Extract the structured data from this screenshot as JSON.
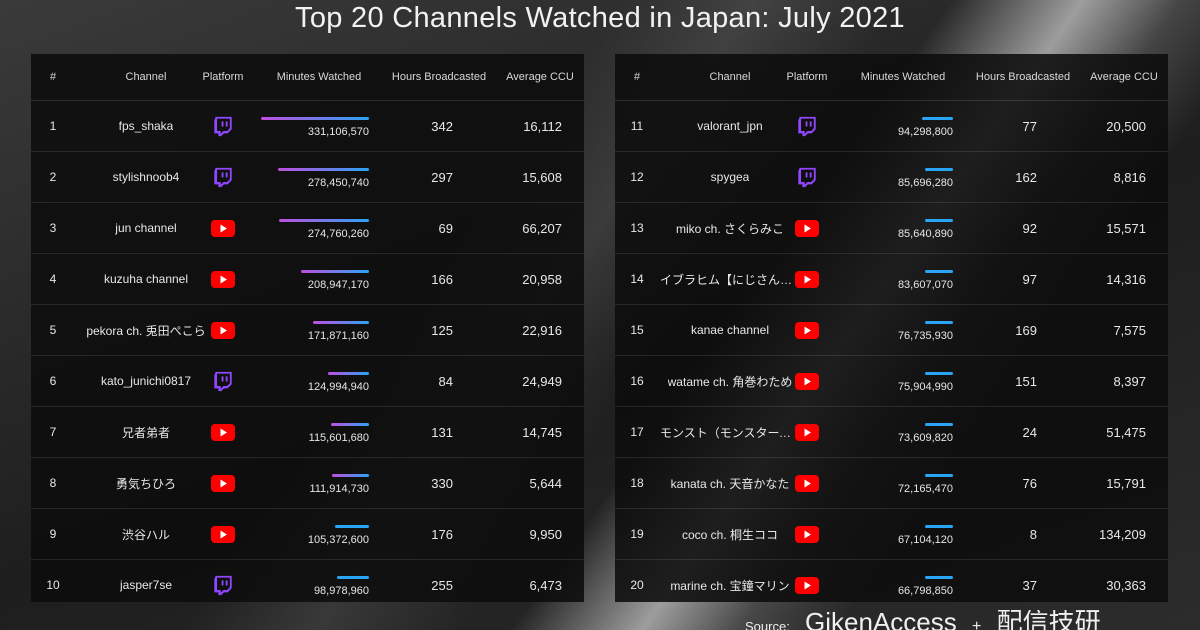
{
  "title": "Top 20 Channels Watched in Japan: July 2021",
  "headers": {
    "rank": "#",
    "channel": "Channel",
    "platform": "Platform",
    "minutes": "Minutes Watched",
    "hours": "Hours Broadcasted",
    "ccu": "Average CCU"
  },
  "colors": {
    "twitch": "#9146ff",
    "youtube": "#ff0000",
    "bar_start": "#c04ee0",
    "bar_end": "#2aa4f4"
  },
  "footer": {
    "source_label": "Source:",
    "brand1": "GikenAccess",
    "plus": "+",
    "brand2": "配信技研"
  },
  "chart_data": {
    "type": "table",
    "title": "Top 20 Channels Watched in Japan: July 2021",
    "columns": [
      "#",
      "Channel",
      "Platform",
      "Minutes Watched",
      "Hours Broadcasted",
      "Average CCU"
    ],
    "rows": [
      {
        "rank": "1",
        "channel": "fps_shaka",
        "platform": "twitch",
        "minutes": 331106570,
        "minutes_label": "331,106,570",
        "hours": "342",
        "ccu": "16,112"
      },
      {
        "rank": "2",
        "channel": "stylishnoob4",
        "platform": "twitch",
        "minutes": 278450740,
        "minutes_label": "278,450,740",
        "hours": "297",
        "ccu": "15,608"
      },
      {
        "rank": "3",
        "channel": "jun channel",
        "platform": "youtube",
        "minutes": 274760260,
        "minutes_label": "274,760,260",
        "hours": "69",
        "ccu": "66,207"
      },
      {
        "rank": "4",
        "channel": "kuzuha channel",
        "platform": "youtube",
        "minutes": 208947170,
        "minutes_label": "208,947,170",
        "hours": "166",
        "ccu": "20,958"
      },
      {
        "rank": "5",
        "channel": "pekora ch. 兎田ぺこら",
        "platform": "youtube",
        "minutes": 171871160,
        "minutes_label": "171,871,160",
        "hours": "125",
        "ccu": "22,916"
      },
      {
        "rank": "6",
        "channel": "kato_junichi0817",
        "platform": "twitch",
        "minutes": 124994940,
        "minutes_label": "124,994,940",
        "hours": "84",
        "ccu": "24,949"
      },
      {
        "rank": "7",
        "channel": "兄者弟者",
        "platform": "youtube",
        "minutes": 115601680,
        "minutes_label": "115,601,680",
        "hours": "131",
        "ccu": "14,745"
      },
      {
        "rank": "8",
        "channel": "勇気ちひろ",
        "platform": "youtube",
        "minutes": 111914730,
        "minutes_label": "111,914,730",
        "hours": "330",
        "ccu": "5,644"
      },
      {
        "rank": "9",
        "channel": "渋谷ハル",
        "platform": "youtube",
        "minutes": 105372600,
        "minutes_label": "105,372,600",
        "hours": "176",
        "ccu": "9,950"
      },
      {
        "rank": "10",
        "channel": "jasper7se",
        "platform": "twitch",
        "minutes": 98978960,
        "minutes_label": "98,978,960",
        "hours": "255",
        "ccu": "6,473"
      },
      {
        "rank": "11",
        "channel": "valorant_jpn",
        "platform": "twitch",
        "minutes": 94298800,
        "minutes_label": "94,298,800",
        "hours": "77",
        "ccu": "20,500"
      },
      {
        "rank": "12",
        "channel": "spygea",
        "platform": "twitch",
        "minutes": 85696280,
        "minutes_label": "85,696,280",
        "hours": "162",
        "ccu": "8,816"
      },
      {
        "rank": "13",
        "channel": "miko ch. さくらみこ",
        "platform": "youtube",
        "minutes": 85640890,
        "minutes_label": "85,640,890",
        "hours": "92",
        "ccu": "15,571"
      },
      {
        "rank": "14",
        "channel": "イブラヒム【にじさんじ】",
        "platform": "youtube",
        "minutes": 83607070,
        "minutes_label": "83,607,070",
        "hours": "97",
        "ccu": "14,316"
      },
      {
        "rank": "15",
        "channel": "kanae channel",
        "platform": "youtube",
        "minutes": 76735930,
        "minutes_label": "76,735,930",
        "hours": "169",
        "ccu": "7,575"
      },
      {
        "rank": "16",
        "channel": "watame ch. 角巻わため",
        "platform": "youtube",
        "minutes": 75904990,
        "minutes_label": "75,904,990",
        "hours": "151",
        "ccu": "8,397"
      },
      {
        "rank": "17",
        "channel": "モンスト（モンスターストライク）",
        "platform": "youtube",
        "minutes": 73609820,
        "minutes_label": "73,609,820",
        "hours": "24",
        "ccu": "51,475"
      },
      {
        "rank": "18",
        "channel": "kanata ch. 天音かなた",
        "platform": "youtube",
        "minutes": 72165470,
        "minutes_label": "72,165,470",
        "hours": "76",
        "ccu": "15,791"
      },
      {
        "rank": "19",
        "channel": "coco ch. 桐生ココ",
        "platform": "youtube",
        "minutes": 67104120,
        "minutes_label": "67,104,120",
        "hours": "8",
        "ccu": "134,209"
      },
      {
        "rank": "20",
        "channel": "marine ch. 宝鐘マリン",
        "platform": "youtube",
        "minutes": 66798850,
        "minutes_label": "66,798,850",
        "hours": "37",
        "ccu": "30,363"
      }
    ]
  }
}
